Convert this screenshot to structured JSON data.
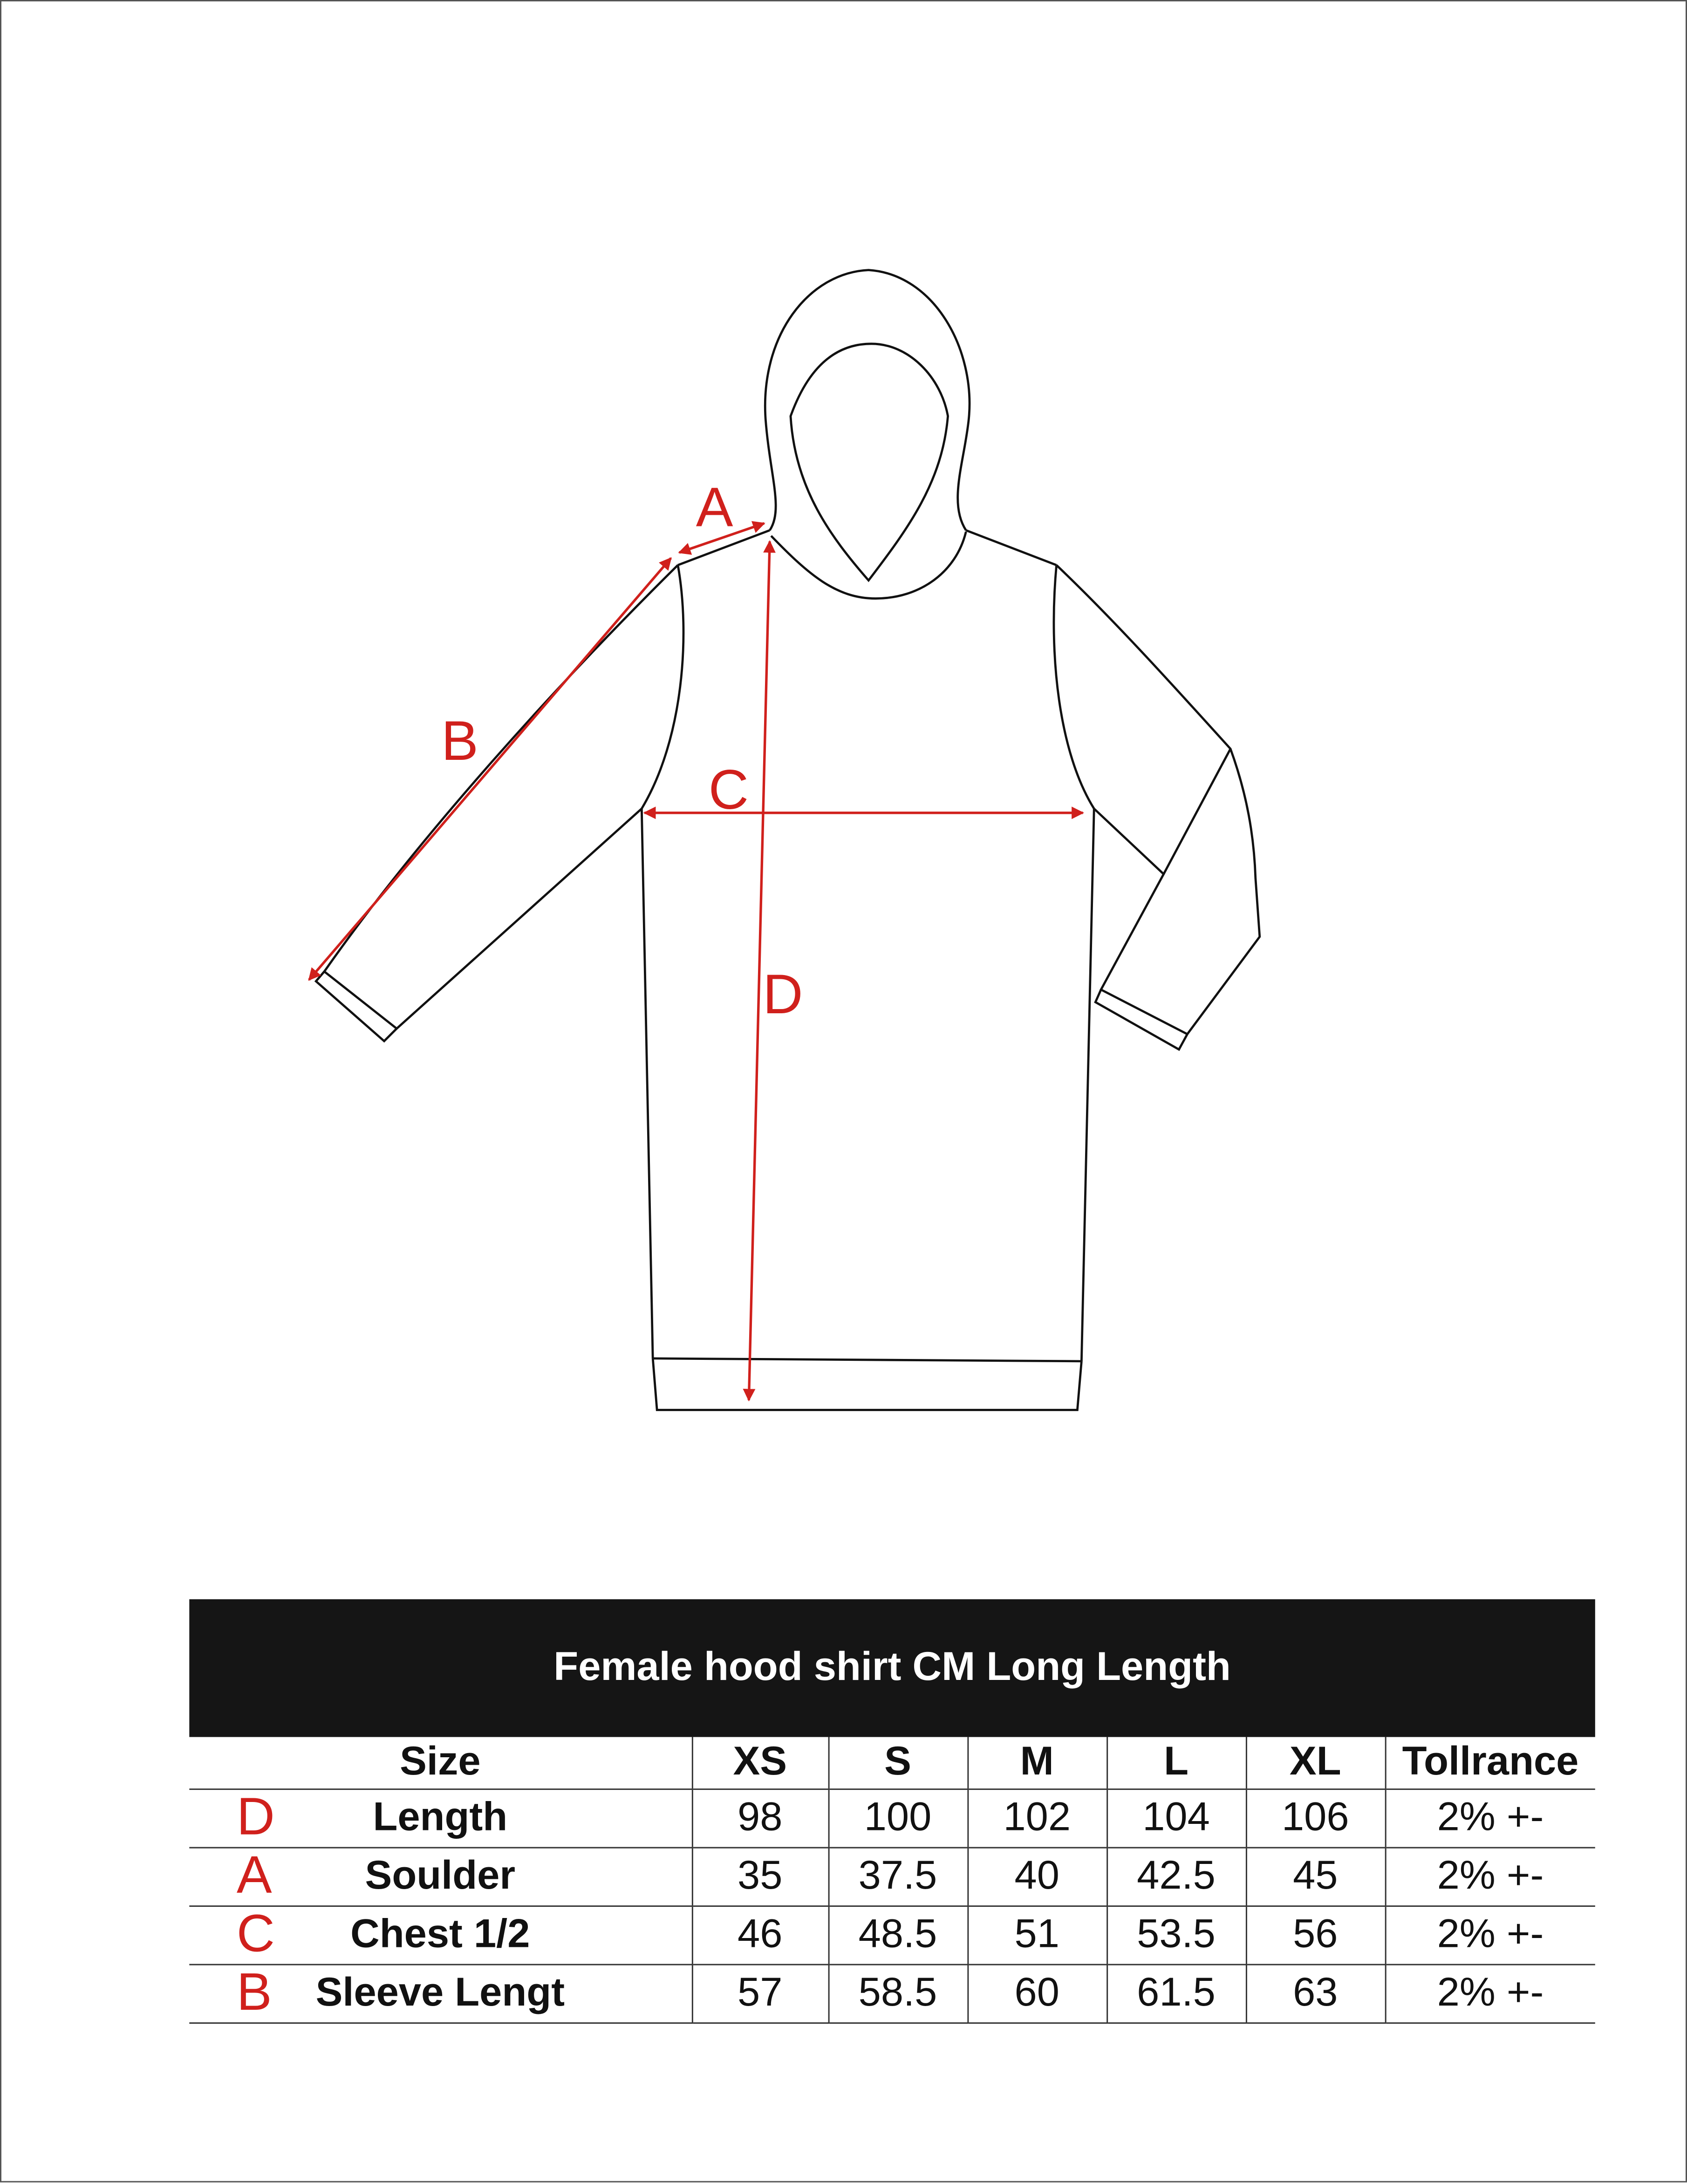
{
  "diagram": {
    "labels": {
      "A": "A",
      "B": "B",
      "C": "C",
      "D": "D"
    },
    "colors": {
      "arrow": "#d0201c",
      "outline": "#111111"
    }
  },
  "table": {
    "title": "Female hood shirt CM Long Length",
    "headers": [
      "Size",
      "XS",
      "S",
      "M",
      "L",
      "XL",
      "Tollrance"
    ],
    "rows": [
      {
        "letter": "D",
        "name": "Length",
        "values": [
          "98",
          "100",
          "102",
          "104",
          "106"
        ],
        "tolerance": "2% +-"
      },
      {
        "letter": "A",
        "name": "Soulder",
        "values": [
          "35",
          "37.5",
          "40",
          "42.5",
          "45"
        ],
        "tolerance": "2% +-"
      },
      {
        "letter": "C",
        "name": "Chest 1/2",
        "values": [
          "46",
          "48.5",
          "51",
          "53.5",
          "56"
        ],
        "tolerance": "2% +-"
      },
      {
        "letter": "B",
        "name": "Sleeve Lengt",
        "values": [
          "57",
          "58.5",
          "60",
          "61.5",
          "63"
        ],
        "tolerance": "2% +-"
      }
    ],
    "colors": {
      "title_bg": "#151515",
      "letter": "#d0201c"
    }
  }
}
